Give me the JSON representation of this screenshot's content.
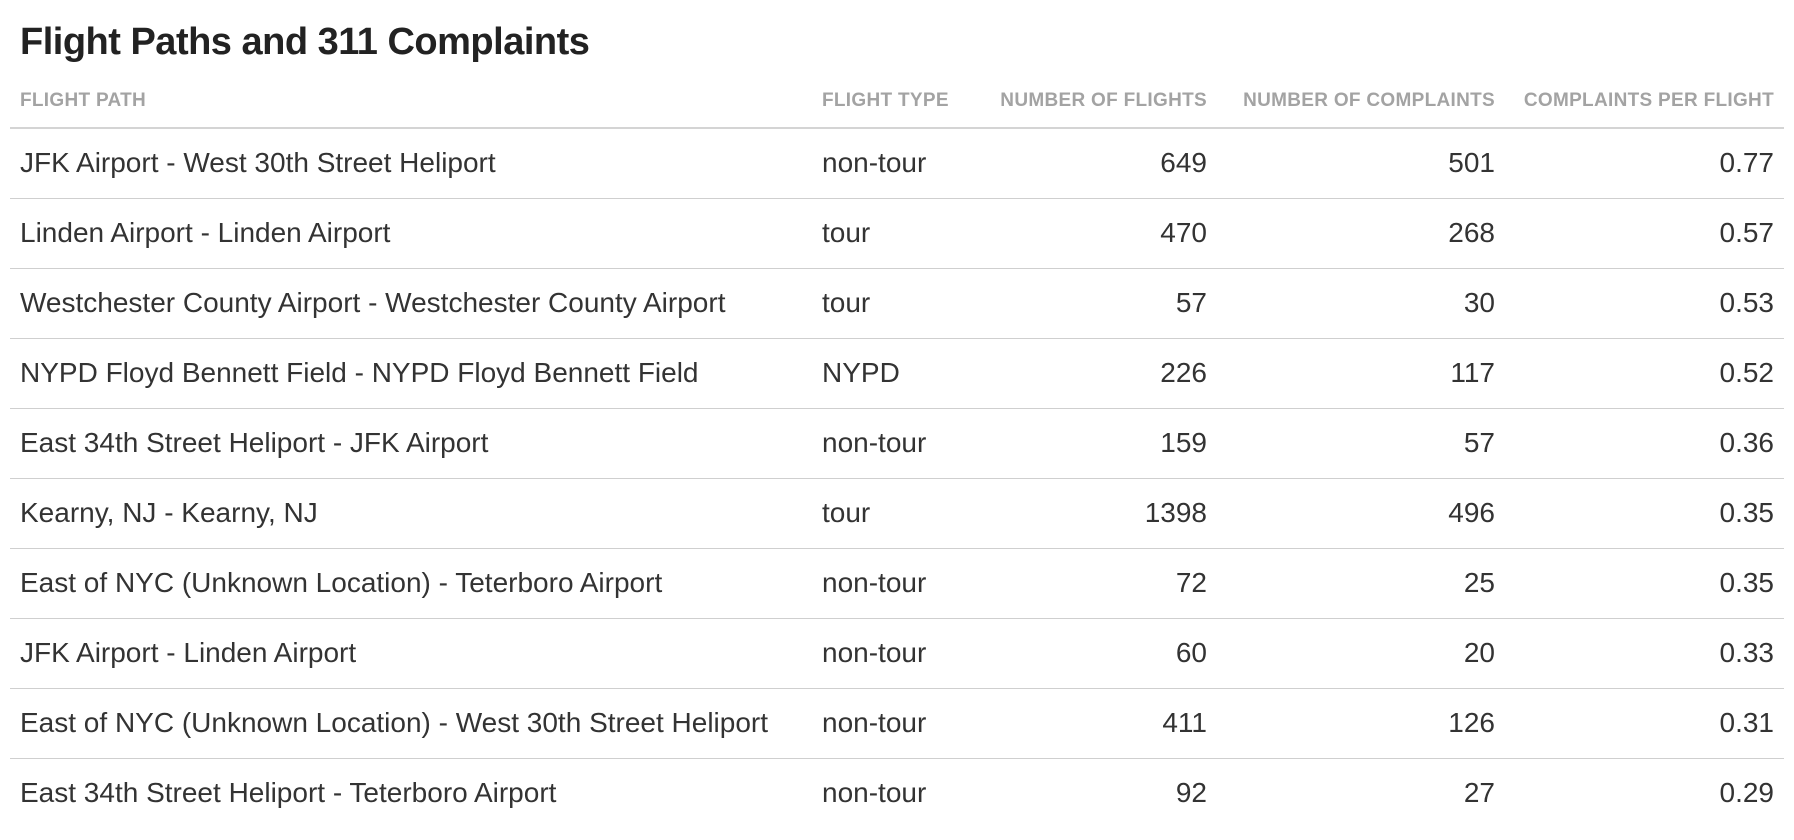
{
  "chart_data": {
    "type": "table",
    "title": "Flight Paths and 311 Complaints",
    "columns": [
      "FLIGHT PATH",
      "FLIGHT TYPE",
      "NUMBER OF FLIGHTS",
      "NUMBER OF COMPLAINTS",
      "COMPLAINTS PER FLIGHT"
    ],
    "rows": [
      {
        "path": "JFK Airport - West 30th Street Heliport",
        "type": "non-tour",
        "flights": "649",
        "complaints": "501",
        "per_flight": "0.77"
      },
      {
        "path": "Linden Airport - Linden Airport",
        "type": "tour",
        "flights": "470",
        "complaints": "268",
        "per_flight": "0.57"
      },
      {
        "path": "Westchester County Airport - Westchester County Airport",
        "type": "tour",
        "flights": "57",
        "complaints": "30",
        "per_flight": "0.53"
      },
      {
        "path": "NYPD Floyd Bennett Field - NYPD Floyd Bennett Field",
        "type": "NYPD",
        "flights": "226",
        "complaints": "117",
        "per_flight": "0.52"
      },
      {
        "path": "East 34th Street Heliport - JFK Airport",
        "type": "non-tour",
        "flights": "159",
        "complaints": "57",
        "per_flight": "0.36"
      },
      {
        "path": "Kearny, NJ - Kearny, NJ",
        "type": "tour",
        "flights": "1398",
        "complaints": "496",
        "per_flight": "0.35"
      },
      {
        "path": "East of NYC (Unknown Location) - Teterboro Airport",
        "type": "non-tour",
        "flights": "72",
        "complaints": "25",
        "per_flight": "0.35"
      },
      {
        "path": "JFK Airport - Linden Airport",
        "type": "non-tour",
        "flights": "60",
        "complaints": "20",
        "per_flight": "0.33"
      },
      {
        "path": "East of NYC (Unknown Location) - West 30th Street Heliport",
        "type": "non-tour",
        "flights": "411",
        "complaints": "126",
        "per_flight": "0.31"
      },
      {
        "path": "East 34th Street Heliport - Teterboro Airport",
        "type": "non-tour",
        "flights": "92",
        "complaints": "27",
        "per_flight": "0.29"
      }
    ]
  },
  "colors": {
    "title_text": "#222222",
    "header_text": "#a3a3a3",
    "body_text": "#333333",
    "row_divider": "#cfcfcf"
  }
}
